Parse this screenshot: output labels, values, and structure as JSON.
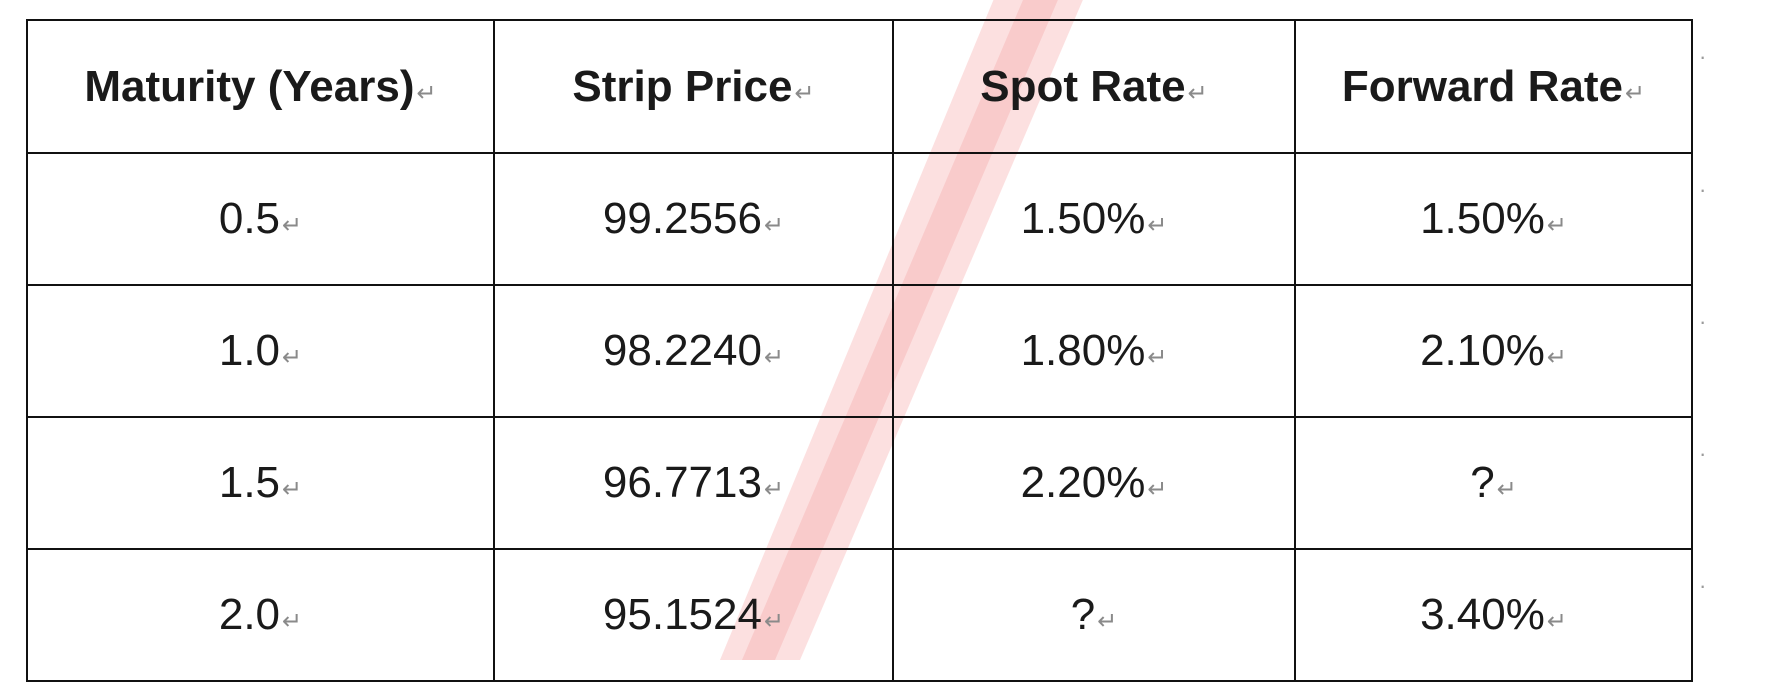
{
  "table": {
    "columns": [
      "Maturity (Years)",
      "Strip Price",
      "Spot Rate",
      "Forward Rate"
    ],
    "rows": [
      [
        "0.5",
        "99.2556",
        "1.50%",
        "1.50%"
      ],
      [
        "1.0",
        "98.2240",
        "1.80%",
        "2.10%"
      ],
      [
        "1.5",
        "96.7713",
        "2.20%",
        "?"
      ],
      [
        "2.0",
        "95.1524",
        "?",
        "3.40%"
      ]
    ]
  },
  "marks": {
    "paragraph": "↵",
    "row_end": "·"
  },
  "colors": {
    "watermark": "#f4a4a4",
    "border": "#111111",
    "text": "#1a1a1a"
  }
}
